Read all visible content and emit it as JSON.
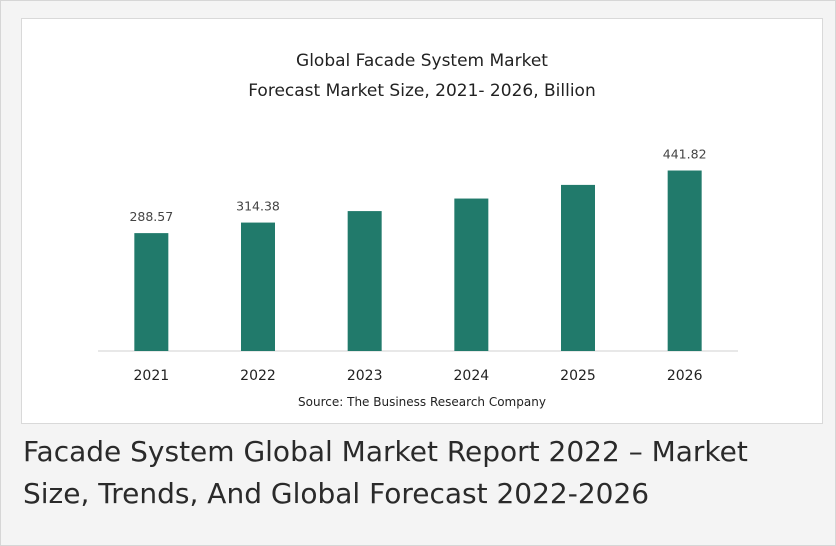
{
  "caption": "Facade System Global Market Report 2022 – Market Size, Trends, And Global Forecast 2022-2026",
  "chart_data": {
    "type": "bar",
    "title_line1": "Global Facade System Market",
    "title_line2": "Forecast Market Size, 2021- 2026, Billion",
    "categories": [
      "2021",
      "2022",
      "2023",
      "2024",
      "2025",
      "2026"
    ],
    "values": [
      288.57,
      314.38,
      342.5,
      373.2,
      406.6,
      441.82
    ],
    "data_labels": [
      "288.57",
      "314.38",
      "",
      "",
      "",
      "441.82"
    ],
    "ylim": [
      0,
      470
    ],
    "xlabel": "",
    "ylabel": "",
    "grid": false,
    "bar_color": "#217a6b",
    "source": "Source: The Business Research Company"
  }
}
